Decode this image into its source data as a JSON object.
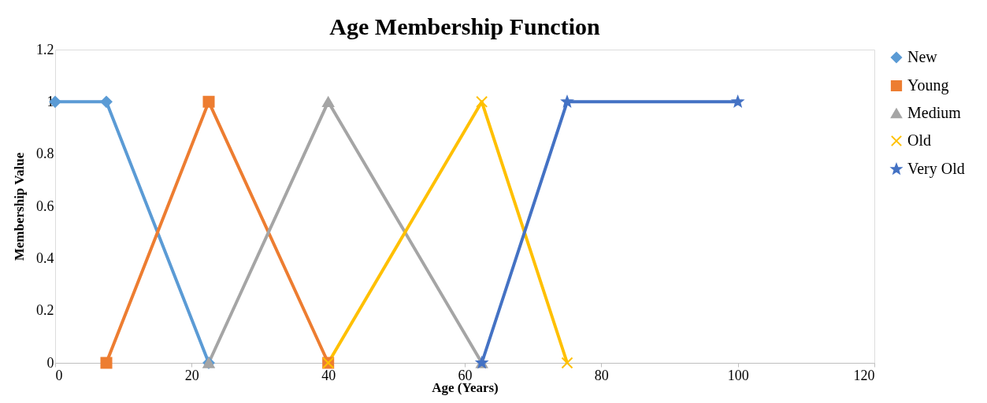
{
  "chart_data": {
    "type": "line",
    "title": "Age Membership Function",
    "xlabel": "Age (Years)",
    "ylabel": "Membership Value",
    "xlim": [
      0,
      120
    ],
    "xticks": [
      0,
      20,
      40,
      60,
      80,
      100,
      120
    ],
    "ylim": [
      0,
      1.2
    ],
    "yticks": [
      0,
      0.2,
      0.4,
      0.6,
      0.8,
      1,
      1.2
    ],
    "grid": false,
    "legend": "right",
    "line_style": "solid",
    "series": [
      {
        "name": "New",
        "color": "#5b9bd5",
        "marker": "diamond",
        "x": [
          0,
          7.5,
          22.5
        ],
        "values": [
          1,
          1,
          0
        ]
      },
      {
        "name": "Young",
        "color": "#ed7d31",
        "marker": "square",
        "x": [
          7.5,
          22.5,
          40
        ],
        "values": [
          0,
          1,
          0
        ]
      },
      {
        "name": "Medium",
        "color": "#a5a5a5",
        "marker": "triangle",
        "x": [
          22.5,
          40,
          62.5
        ],
        "values": [
          0,
          1,
          0
        ]
      },
      {
        "name": "Old",
        "color": "#ffc000",
        "marker": "cross",
        "x": [
          40,
          62.5,
          75
        ],
        "values": [
          0,
          1,
          0
        ]
      },
      {
        "name": "Very Old",
        "color": "#4472c4",
        "marker": "star",
        "x": [
          62.5,
          75,
          100
        ],
        "values": [
          0,
          1,
          1
        ]
      }
    ]
  }
}
